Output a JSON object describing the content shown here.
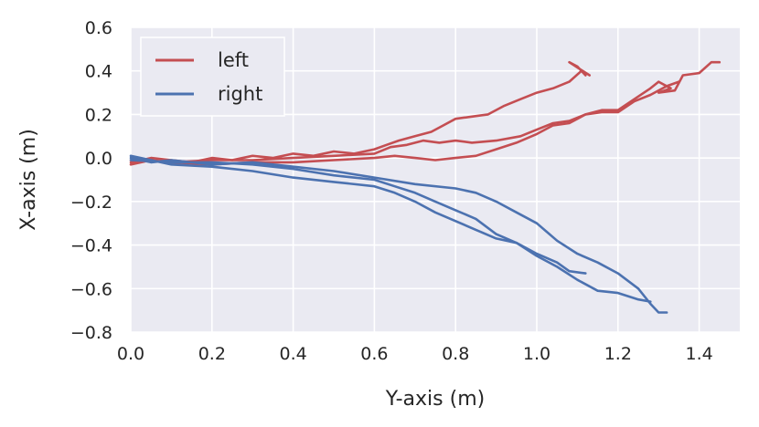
{
  "chart_data": {
    "type": "line",
    "xlabel": "Y-axis (m)",
    "ylabel": "X-axis (m)",
    "xlim": [
      0.0,
      1.5
    ],
    "ylim": [
      -0.8,
      0.6
    ],
    "xticks": [
      "0.0",
      "0.2",
      "0.4",
      "0.6",
      "0.8",
      "1.0",
      "1.2",
      "1.4"
    ],
    "yticks": [
      "0.6",
      "0.4",
      "0.2",
      "0.0",
      "−0.2",
      "−0.4",
      "−0.6",
      "−0.8"
    ],
    "xtick_values": [
      0.0,
      0.2,
      0.4,
      0.6,
      0.8,
      1.0,
      1.2,
      1.4
    ],
    "ytick_values": [
      0.6,
      0.4,
      0.2,
      0.0,
      -0.2,
      -0.4,
      -0.6,
      -0.8
    ],
    "grid": true,
    "legend_position": "top-left",
    "background_color": "#eaeaf2",
    "series": [
      {
        "name": "left",
        "color": "#c44e52",
        "traces": [
          [
            [
              0.0,
              -0.02
            ],
            [
              0.05,
              0.0
            ],
            [
              0.1,
              -0.01
            ],
            [
              0.15,
              -0.02
            ],
            [
              0.2,
              0.0
            ],
            [
              0.25,
              -0.01
            ],
            [
              0.3,
              0.01
            ],
            [
              0.35,
              0.0
            ],
            [
              0.4,
              0.02
            ],
            [
              0.45,
              0.01
            ],
            [
              0.5,
              0.03
            ],
            [
              0.55,
              0.02
            ],
            [
              0.6,
              0.04
            ],
            [
              0.63,
              0.06
            ],
            [
              0.66,
              0.08
            ],
            [
              0.7,
              0.1
            ],
            [
              0.74,
              0.12
            ],
            [
              0.77,
              0.15
            ],
            [
              0.8,
              0.18
            ],
            [
              0.84,
              0.19
            ],
            [
              0.88,
              0.2
            ],
            [
              0.92,
              0.24
            ],
            [
              0.96,
              0.27
            ],
            [
              1.0,
              0.3
            ],
            [
              1.04,
              0.32
            ],
            [
              1.08,
              0.35
            ],
            [
              1.11,
              0.4
            ],
            [
              1.12,
              0.38
            ],
            [
              1.1,
              0.42
            ],
            [
              1.08,
              0.44
            ],
            [
              1.13,
              0.38
            ]
          ],
          [
            [
              0.0,
              -0.03
            ],
            [
              0.05,
              -0.01
            ],
            [
              0.1,
              -0.02
            ],
            [
              0.2,
              -0.01
            ],
            [
              0.3,
              -0.01
            ],
            [
              0.4,
              0.0
            ],
            [
              0.5,
              0.01
            ],
            [
              0.6,
              0.02
            ],
            [
              0.64,
              0.05
            ],
            [
              0.68,
              0.06
            ],
            [
              0.72,
              0.08
            ],
            [
              0.76,
              0.07
            ],
            [
              0.8,
              0.08
            ],
            [
              0.84,
              0.07
            ],
            [
              0.9,
              0.08
            ],
            [
              0.96,
              0.1
            ],
            [
              1.0,
              0.13
            ],
            [
              1.04,
              0.16
            ],
            [
              1.08,
              0.17
            ],
            [
              1.12,
              0.2
            ],
            [
              1.16,
              0.22
            ],
            [
              1.2,
              0.22
            ],
            [
              1.24,
              0.27
            ],
            [
              1.28,
              0.32
            ],
            [
              1.3,
              0.35
            ],
            [
              1.33,
              0.32
            ],
            [
              1.3,
              0.3
            ],
            [
              1.34,
              0.31
            ],
            [
              1.36,
              0.38
            ],
            [
              1.4,
              0.39
            ],
            [
              1.43,
              0.44
            ],
            [
              1.45,
              0.44
            ]
          ],
          [
            [
              0.0,
              -0.01
            ],
            [
              0.1,
              -0.02
            ],
            [
              0.2,
              -0.03
            ],
            [
              0.3,
              -0.02
            ],
            [
              0.4,
              -0.02
            ],
            [
              0.5,
              -0.01
            ],
            [
              0.6,
              0.0
            ],
            [
              0.65,
              0.01
            ],
            [
              0.7,
              0.0
            ],
            [
              0.75,
              -0.01
            ],
            [
              0.8,
              0.0
            ],
            [
              0.85,
              0.01
            ],
            [
              0.9,
              0.04
            ],
            [
              0.95,
              0.07
            ],
            [
              1.0,
              0.11
            ],
            [
              1.04,
              0.15
            ],
            [
              1.08,
              0.16
            ],
            [
              1.12,
              0.2
            ],
            [
              1.16,
              0.21
            ],
            [
              1.2,
              0.21
            ],
            [
              1.24,
              0.26
            ],
            [
              1.28,
              0.29
            ],
            [
              1.32,
              0.33
            ],
            [
              1.35,
              0.35
            ]
          ]
        ]
      },
      {
        "name": "right",
        "color": "#4c72b0",
        "traces": [
          [
            [
              0.0,
              0.0
            ],
            [
              0.05,
              -0.02
            ],
            [
              0.1,
              -0.01
            ],
            [
              0.2,
              -0.03
            ],
            [
              0.3,
              -0.02
            ],
            [
              0.4,
              -0.04
            ],
            [
              0.5,
              -0.06
            ],
            [
              0.6,
              -0.09
            ],
            [
              0.7,
              -0.12
            ],
            [
              0.8,
              -0.14
            ],
            [
              0.85,
              -0.16
            ],
            [
              0.9,
              -0.2
            ],
            [
              0.95,
              -0.25
            ],
            [
              1.0,
              -0.3
            ],
            [
              1.05,
              -0.38
            ],
            [
              1.1,
              -0.44
            ],
            [
              1.15,
              -0.48
            ],
            [
              1.2,
              -0.53
            ],
            [
              1.25,
              -0.6
            ],
            [
              1.28,
              -0.67
            ],
            [
              1.3,
              -0.71
            ],
            [
              1.32,
              -0.71
            ]
          ],
          [
            [
              0.0,
              0.01
            ],
            [
              0.05,
              -0.01
            ],
            [
              0.1,
              -0.03
            ],
            [
              0.2,
              -0.04
            ],
            [
              0.3,
              -0.06
            ],
            [
              0.4,
              -0.09
            ],
            [
              0.5,
              -0.11
            ],
            [
              0.6,
              -0.13
            ],
            [
              0.65,
              -0.16
            ],
            [
              0.7,
              -0.2
            ],
            [
              0.75,
              -0.25
            ],
            [
              0.8,
              -0.29
            ],
            [
              0.85,
              -0.33
            ],
            [
              0.9,
              -0.37
            ],
            [
              0.95,
              -0.39
            ],
            [
              1.0,
              -0.44
            ],
            [
              1.05,
              -0.48
            ],
            [
              1.08,
              -0.52
            ],
            [
              1.12,
              -0.53
            ]
          ],
          [
            [
              0.0,
              -0.01
            ],
            [
              0.1,
              -0.02
            ],
            [
              0.2,
              -0.02
            ],
            [
              0.3,
              -0.03
            ],
            [
              0.4,
              -0.05
            ],
            [
              0.5,
              -0.08
            ],
            [
              0.6,
              -0.1
            ],
            [
              0.65,
              -0.13
            ],
            [
              0.7,
              -0.16
            ],
            [
              0.75,
              -0.2
            ],
            [
              0.8,
              -0.24
            ],
            [
              0.85,
              -0.28
            ],
            [
              0.9,
              -0.35
            ],
            [
              0.95,
              -0.39
            ],
            [
              1.0,
              -0.45
            ],
            [
              1.05,
              -0.5
            ],
            [
              1.1,
              -0.56
            ],
            [
              1.15,
              -0.61
            ],
            [
              1.2,
              -0.62
            ],
            [
              1.25,
              -0.65
            ],
            [
              1.28,
              -0.66
            ]
          ]
        ]
      }
    ]
  }
}
